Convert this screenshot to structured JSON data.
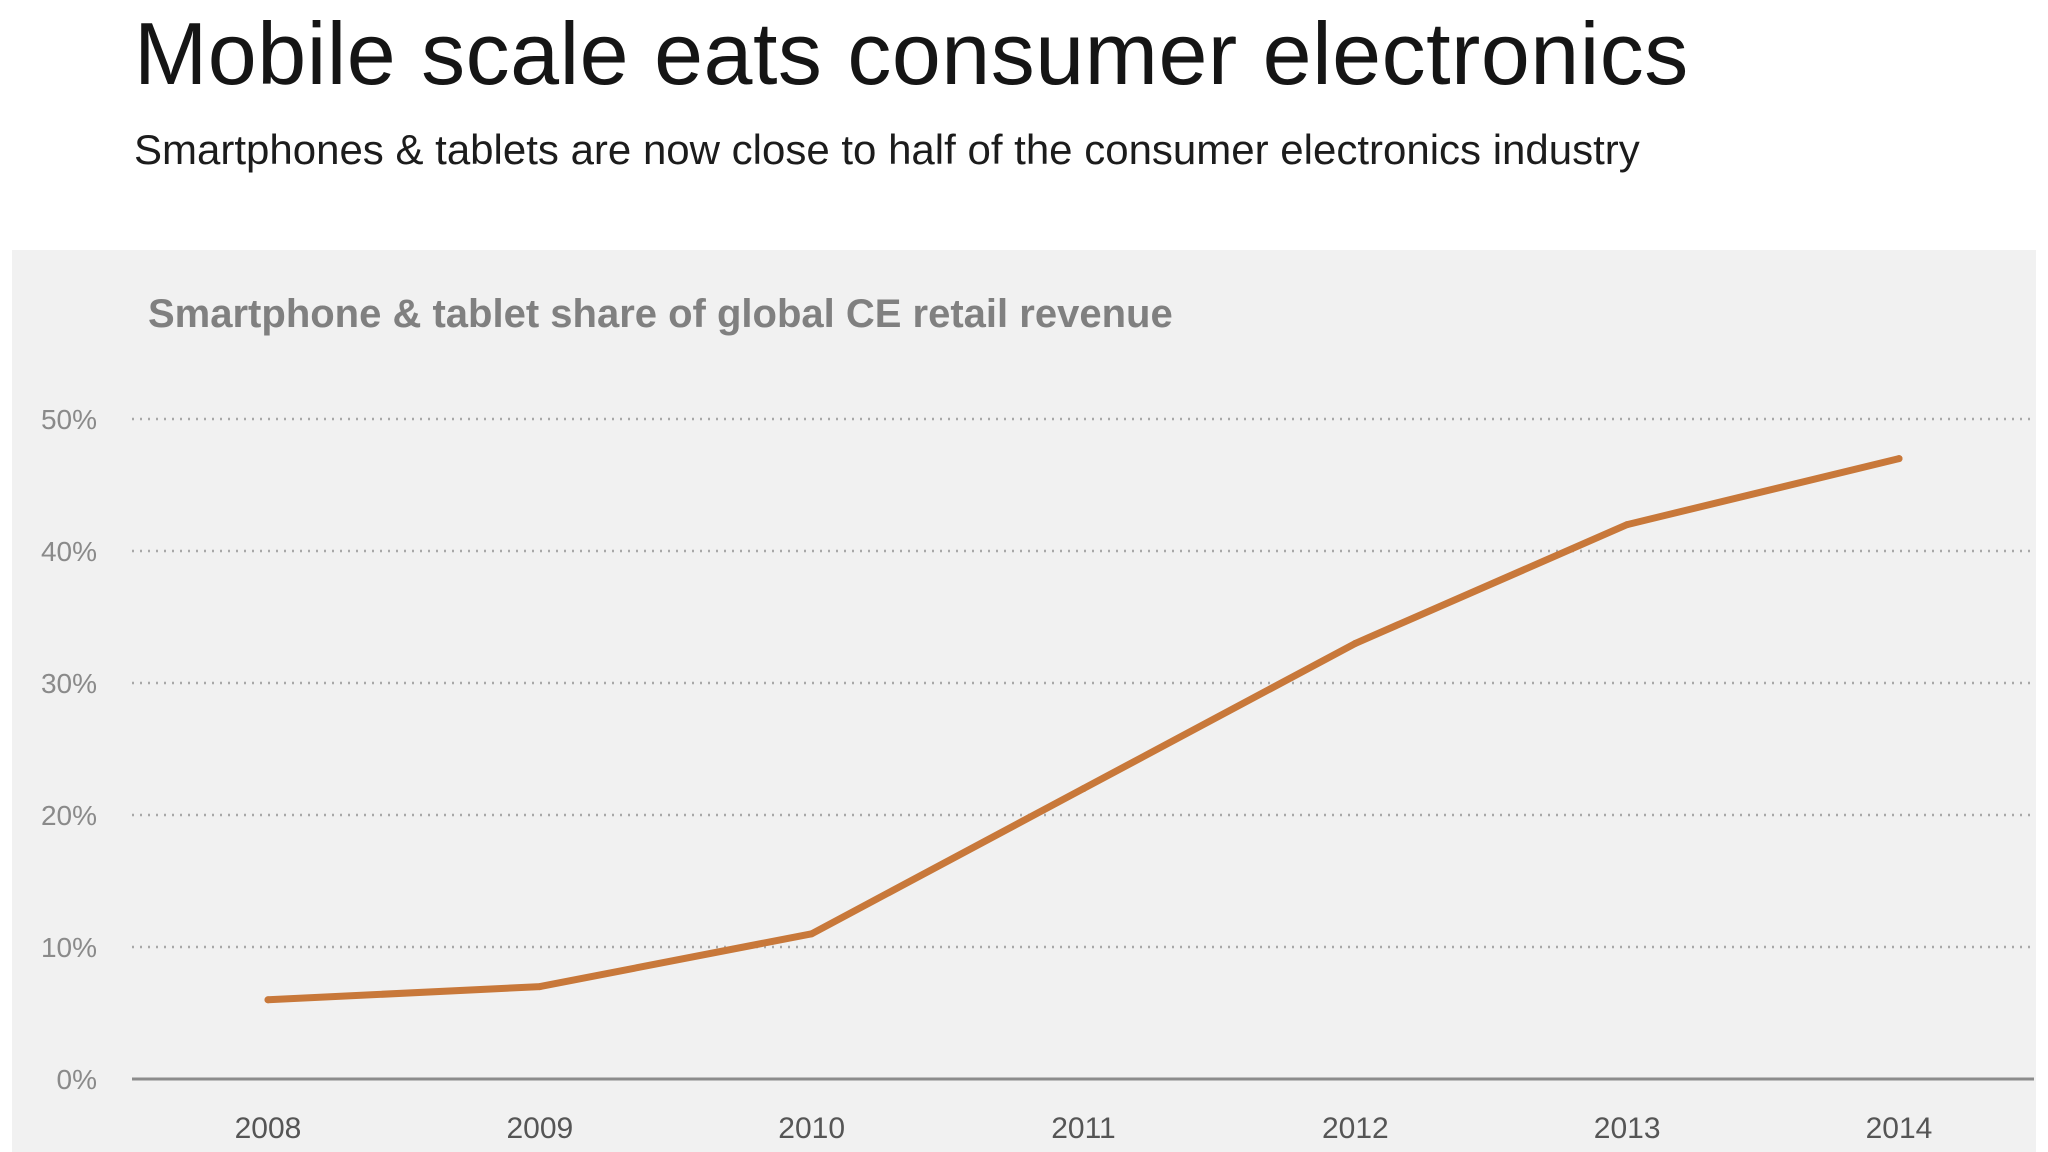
{
  "header": {
    "title": "Mobile scale eats consumer electronics",
    "subtitle": "Smartphones & tablets are now close to half of the consumer electronics industry"
  },
  "colors": {
    "line": "#C8783A",
    "panel_background": "#F1F1F1",
    "gridline": "#A8A8A8",
    "axis": "#8C8C8C"
  },
  "chart_data": {
    "type": "line",
    "title": "Smartphone & tablet share of global CE retail revenue",
    "xlabel": "",
    "ylabel": "",
    "categories": [
      "2008",
      "2009",
      "2010",
      "2011",
      "2012",
      "2013",
      "2014"
    ],
    "series": [
      {
        "name": "Smartphone & tablet share",
        "values": [
          6,
          7,
          11,
          22,
          33,
          42,
          47
        ]
      }
    ],
    "ylim": [
      0,
      50
    ],
    "yticks": [
      0,
      10,
      20,
      30,
      40,
      50
    ],
    "ytick_labels": [
      "0%",
      "10%",
      "20%",
      "30%",
      "40%",
      "50%"
    ],
    "grid": "horizontal dotted",
    "legend": "none"
  }
}
